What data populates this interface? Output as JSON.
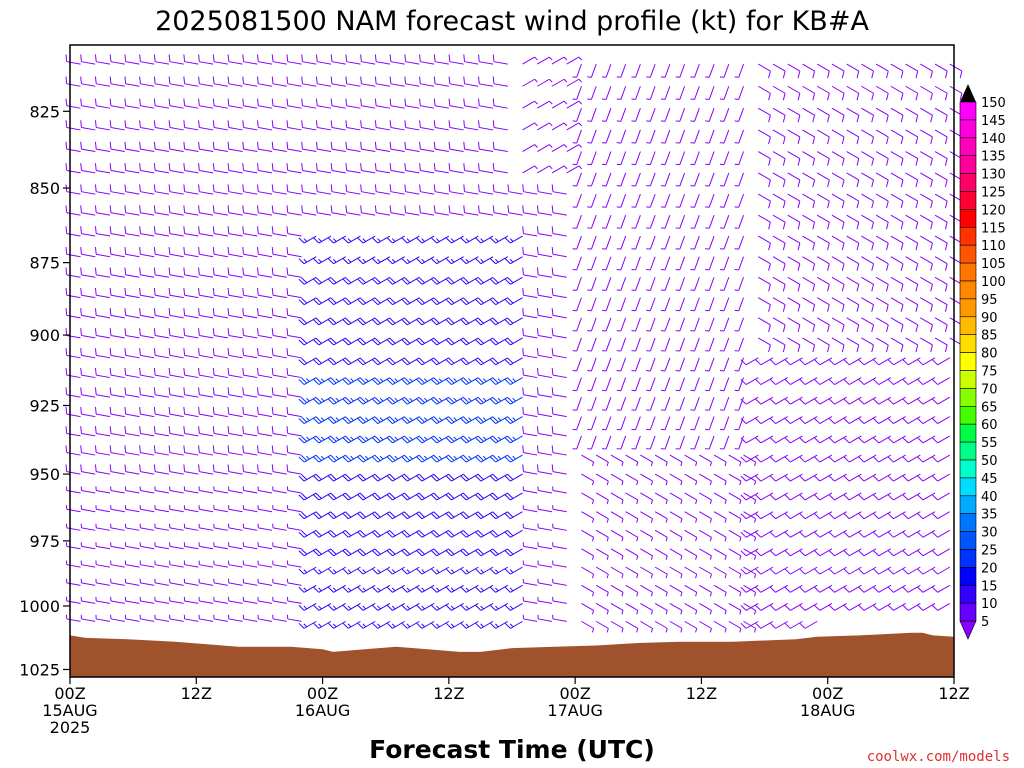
{
  "chart_data": {
    "type": "wind-barb-profile",
    "title": "2025081500 NAM forecast wind profile (kt) for KB#A",
    "xlabel": "Forecast Time (UTC)",
    "ylabel": "",
    "y_axis_scale": "pressure (log), inverted",
    "y_range_hPa": [
      804,
      1028
    ],
    "y_ticks": [
      {
        "value": 825,
        "label": "825"
      },
      {
        "value": 850,
        "label": "850"
      },
      {
        "value": 875,
        "label": "875"
      },
      {
        "value": 900,
        "label": "900"
      },
      {
        "value": 925,
        "label": "925"
      },
      {
        "value": 950,
        "label": "950"
      },
      {
        "value": 975,
        "label": "975"
      },
      {
        "value": 1000,
        "label": "1000"
      },
      {
        "value": 1025,
        "label": "1025"
      }
    ],
    "x_range_hours": [
      0,
      84
    ],
    "x_ticks": [
      {
        "hour": 0,
        "label": "00Z",
        "label2": "15AUG",
        "label3": "2025"
      },
      {
        "hour": 12,
        "label": "12Z",
        "label2": "",
        "label3": ""
      },
      {
        "hour": 24,
        "label": "00Z",
        "label2": "16AUG",
        "label3": ""
      },
      {
        "hour": 36,
        "label": "12Z",
        "label2": "",
        "label3": ""
      },
      {
        "hour": 48,
        "label": "00Z",
        "label2": "17AUG",
        "label3": ""
      },
      {
        "hour": 60,
        "label": "12Z",
        "label2": "",
        "label3": ""
      },
      {
        "hour": 72,
        "label": "00Z",
        "label2": "18AUG",
        "label3": ""
      },
      {
        "hour": 84,
        "label": "12Z",
        "label2": "",
        "label3": ""
      }
    ],
    "legend_labels": [
      "150",
      "145",
      "140",
      "135",
      "130",
      "125",
      "120",
      "115",
      "110",
      "105",
      "100",
      "95",
      "90",
      "85",
      "80",
      "75",
      "70",
      "65",
      "60",
      "55",
      "50",
      "45",
      "40",
      "35",
      "30",
      "25",
      "20",
      "15",
      "10",
      "5"
    ],
    "legend_placement": "right",
    "legend_colors": [
      "#ff00ff",
      "#ff00dd",
      "#ff00bb",
      "#ff0099",
      "#ff0066",
      "#ff0033",
      "#ff0000",
      "#ff3300",
      "#ff5500",
      "#ff7700",
      "#ff8800",
      "#ff9900",
      "#ffbb00",
      "#ffdd00",
      "#ffff00",
      "#ccff00",
      "#88ff00",
      "#44ff00",
      "#00ff44",
      "#00ff88",
      "#00ffcc",
      "#00ddff",
      "#00aaff",
      "#0077ff",
      "#0055ff",
      "#0033ff",
      "#0000ff",
      "#3300ff",
      "#6600ff",
      "#8800ff"
    ],
    "surface_pressure_hPa": [
      {
        "hour": 0,
        "p": 1011.5
      },
      {
        "hour": 1.5,
        "p": 1012.5
      },
      {
        "hour": 5.5,
        "p": 1013
      },
      {
        "hour": 10,
        "p": 1014
      },
      {
        "hour": 13,
        "p": 1015
      },
      {
        "hour": 16,
        "p": 1016
      },
      {
        "hour": 21,
        "p": 1016
      },
      {
        "hour": 24,
        "p": 1017
      },
      {
        "hour": 25,
        "p": 1018
      },
      {
        "hour": 28,
        "p": 1017
      },
      {
        "hour": 31,
        "p": 1016
      },
      {
        "hour": 34,
        "p": 1017
      },
      {
        "hour": 37,
        "p": 1018
      },
      {
        "hour": 39,
        "p": 1018
      },
      {
        "hour": 42,
        "p": 1016.5
      },
      {
        "hour": 46,
        "p": 1016
      },
      {
        "hour": 50,
        "p": 1015.5
      },
      {
        "hour": 54,
        "p": 1014.5
      },
      {
        "hour": 58,
        "p": 1014
      },
      {
        "hour": 63,
        "p": 1014
      },
      {
        "hour": 66,
        "p": 1013.5
      },
      {
        "hour": 69,
        "p": 1013
      },
      {
        "hour": 71,
        "p": 1012
      },
      {
        "hour": 75,
        "p": 1011.5
      },
      {
        "hour": 80,
        "p": 1010.5
      },
      {
        "hour": 81,
        "p": 1010.5
      },
      {
        "hour": 82,
        "p": 1011.5
      },
      {
        "hour": 84,
        "p": 1012
      }
    ],
    "wind_barbs_summary": [
      {
        "hours": "0-22",
        "levels_hPa": "810-1008",
        "direction_deg": 280,
        "speed_kt": "5-15"
      },
      {
        "hours": "23-44",
        "levels_hPa": "860-1008",
        "direction_deg": 240,
        "speed_kt": "15-30"
      },
      {
        "hours": "42-48",
        "levels_hPa": "810-850",
        "direction_deg": 60,
        "speed_kt": "5-10"
      },
      {
        "hours": "48-64",
        "levels_hPa": "940-1010",
        "direction_deg": 120,
        "speed_kt": "5-10"
      },
      {
        "hours": "64-84",
        "levels_hPa": "810-900",
        "direction_deg": 120,
        "speed_kt": "5-15"
      },
      {
        "hours": "64-84",
        "levels_hPa": "920-1008",
        "direction_deg": 240,
        "speed_kt": "10-20"
      }
    ],
    "surface_color": "#a0522d",
    "barb_colors": {
      "low": "#8800ff",
      "mid": "#3300ff",
      "high": "#0033ff"
    }
  },
  "credit": "coolwx.com/models",
  "credit_color": "#e03030"
}
